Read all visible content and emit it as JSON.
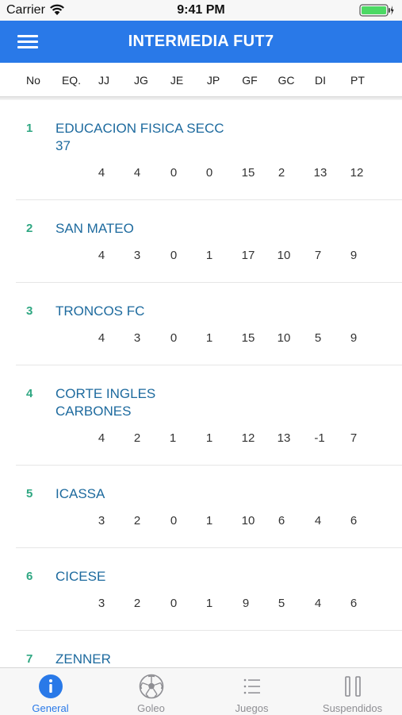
{
  "status": {
    "carrier": "Carrier",
    "time": "9:41 PM"
  },
  "header": {
    "title": "INTERMEDIA FUT7",
    "menu_icon": "hamburger-icon"
  },
  "columns": [
    "No",
    "EQ.",
    "JJ",
    "JG",
    "JE",
    "JP",
    "GF",
    "GC",
    "DI",
    "PT"
  ],
  "rows": [
    {
      "rank": "1",
      "team": "EDUCACION FISICA SECC 37",
      "stats": [
        "4",
        "4",
        "0",
        "0",
        "15",
        "2",
        "13",
        "12"
      ]
    },
    {
      "rank": "2",
      "team": "SAN MATEO",
      "stats": [
        "4",
        "3",
        "0",
        "1",
        "17",
        "10",
        "7",
        "9"
      ]
    },
    {
      "rank": "3",
      "team": "TRONCOS FC",
      "stats": [
        "4",
        "3",
        "0",
        "1",
        "15",
        "10",
        "5",
        "9"
      ]
    },
    {
      "rank": "4",
      "team": "CORTE INGLES CARBONES",
      "stats": [
        "4",
        "2",
        "1",
        "1",
        "12",
        "13",
        "-1",
        "7"
      ]
    },
    {
      "rank": "5",
      "team": "ICASSA",
      "stats": [
        "3",
        "2",
        "0",
        "1",
        "10",
        "6",
        "4",
        "6"
      ]
    },
    {
      "rank": "6",
      "team": "CICESE",
      "stats": [
        "3",
        "2",
        "0",
        "1",
        "9",
        "5",
        "4",
        "6"
      ]
    },
    {
      "rank": "7",
      "team": "ZENNER",
      "stats": []
    }
  ],
  "tabs": [
    {
      "label": "General",
      "icon": "info-icon",
      "active": true
    },
    {
      "label": "Goleo",
      "icon": "soccer-ball-icon",
      "active": false
    },
    {
      "label": "Juegos",
      "icon": "list-icon",
      "active": false
    },
    {
      "label": "Suspendidos",
      "icon": "pause-icon",
      "active": false
    }
  ],
  "colors": {
    "primary": "#2979e8",
    "rank": "#2fa782",
    "team": "#1d6a9e",
    "battery": "#4cd964"
  }
}
